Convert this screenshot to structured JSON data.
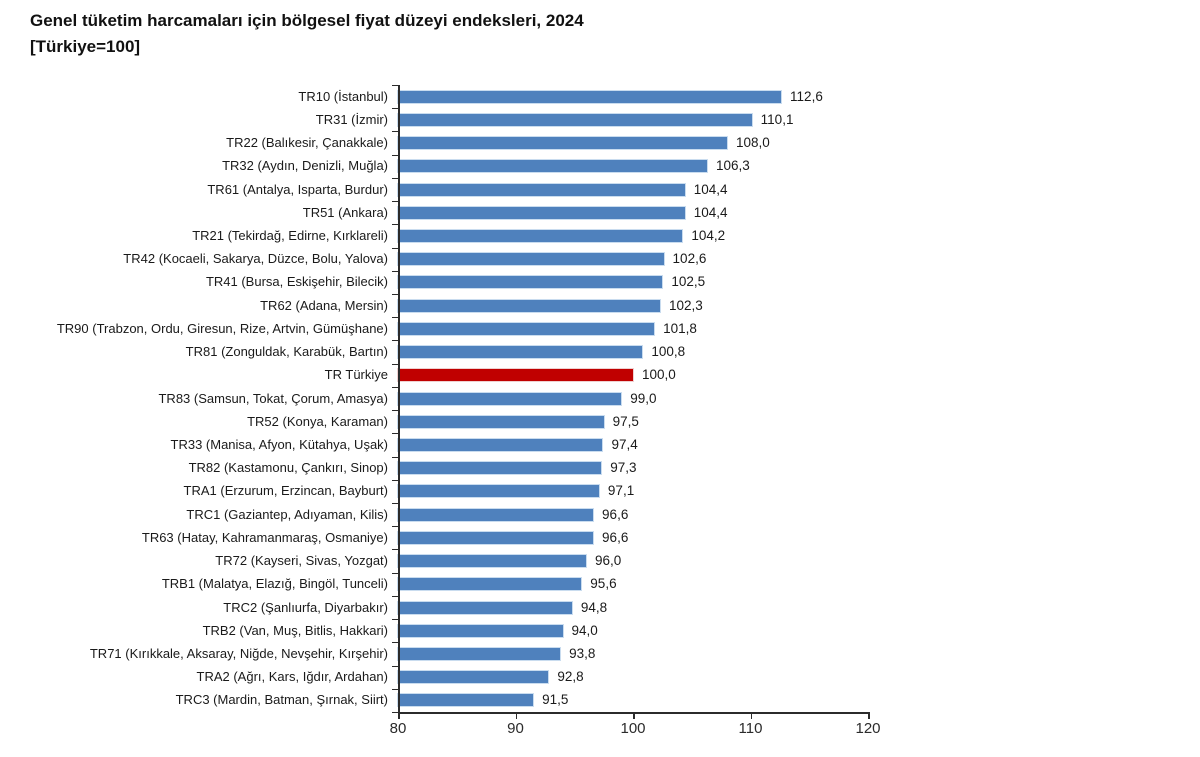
{
  "title": "Genel tüketim harcamaları için bölgesel fiyat düzeyi endeksleri, 2024",
  "subtitle": "[Türkiye=100]",
  "chart_data": {
    "type": "bar",
    "orientation": "horizontal",
    "title": "Genel tüketim harcamaları için bölgesel fiyat düzeyi endeksleri, 2024",
    "subtitle": "[Türkiye=100]",
    "categories": [
      "TR10 (İstanbul)",
      "TR31 (İzmir)",
      "TR22 (Balıkesir, Çanakkale)",
      "TR32 (Aydın, Denizli, Muğla)",
      "TR61 (Antalya, Isparta, Burdur)",
      "TR51 (Ankara)",
      "TR21 (Tekirdağ, Edirne, Kırklareli)",
      "TR42 (Kocaeli, Sakarya, Düzce, Bolu, Yalova)",
      "TR41 (Bursa, Eskişehir, Bilecik)",
      "TR62 (Adana, Mersin)",
      "TR90 (Trabzon, Ordu, Giresun, Rize, Artvin, Gümüşhane)",
      "TR81 (Zonguldak, Karabük, Bartın)",
      "TR Türkiye",
      "TR83 (Samsun, Tokat, Çorum, Amasya)",
      "TR52 (Konya, Karaman)",
      "TR33 (Manisa, Afyon, Kütahya, Uşak)",
      "TR82 (Kastamonu, Çankırı, Sinop)",
      "TRA1 (Erzurum, Erzincan, Bayburt)",
      "TRC1 (Gaziantep, Adıyaman, Kilis)",
      "TR63 (Hatay, Kahramanmaraş, Osmaniye)",
      "TR72 (Kayseri, Sivas, Yozgat)",
      "TRB1 (Malatya, Elazığ, Bingöl, Tunceli)",
      "TRC2 (Şanlıurfa, Diyarbakır)",
      "TRB2 (Van, Muş, Bitlis, Hakkari)",
      "TR71 (Kırıkkale, Aksaray, Niğde, Nevşehir, Kırşehir)",
      "TRA2 (Ağrı, Kars, Iğdır, Ardahan)",
      "TRC3 (Mardin, Batman, Şırnak, Siirt)"
    ],
    "values": [
      112.6,
      110.1,
      108.0,
      106.3,
      104.4,
      104.4,
      104.2,
      102.6,
      102.5,
      102.3,
      101.8,
      100.8,
      100.0,
      99.0,
      97.5,
      97.4,
      97.3,
      97.1,
      96.6,
      96.6,
      96.0,
      95.6,
      94.8,
      94.0,
      93.8,
      92.8,
      91.5
    ],
    "value_labels": [
      "112,6",
      "110,1",
      "108,0",
      "106,3",
      "104,4",
      "104,4",
      "104,2",
      "102,6",
      "102,5",
      "102,3",
      "101,8",
      "100,8",
      "100,0",
      "99,0",
      "97,5",
      "97,4",
      "97,3",
      "97,1",
      "96,6",
      "96,6",
      "96,0",
      "95,6",
      "94,8",
      "94,0",
      "93,8",
      "92,8",
      "91,5"
    ],
    "highlight_category": "TR Türkiye",
    "highlight_index": 12,
    "xlabel": "",
    "ylabel": "",
    "xlim": [
      80,
      120
    ],
    "xticks": [
      80,
      90,
      100,
      110,
      120
    ],
    "xtick_labels": [
      "80",
      "90",
      "100",
      "110",
      "120"
    ],
    "grid": false,
    "legend": false,
    "bar_color": "#4F81BD",
    "highlight_color": "#C00000",
    "decimal_separator": ","
  }
}
